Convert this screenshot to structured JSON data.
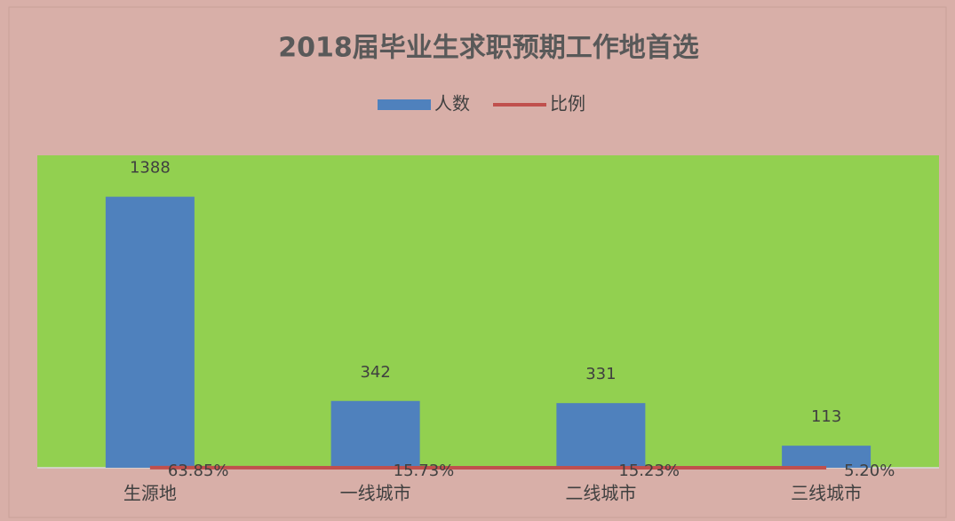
{
  "chart_data": {
    "type": "bar-line",
    "title": "2018届毕业生求职预期工作地首选",
    "categories": [
      "生源地",
      "一线城市",
      "二线城市",
      "三线城市"
    ],
    "series": [
      {
        "name": "人数",
        "type": "bar",
        "color": "#4f81bd",
        "values": [
          1388,
          342,
          331,
          113
        ]
      },
      {
        "name": "比例",
        "type": "line",
        "color": "#c0504d",
        "values": [
          0.6385,
          0.1573,
          0.1523,
          0.052
        ],
        "value_labels": [
          "63.85%",
          "15.73%",
          "15.23%",
          "5.20%"
        ]
      }
    ],
    "ylim": [
      0,
      1600
    ],
    "legend": "top"
  }
}
